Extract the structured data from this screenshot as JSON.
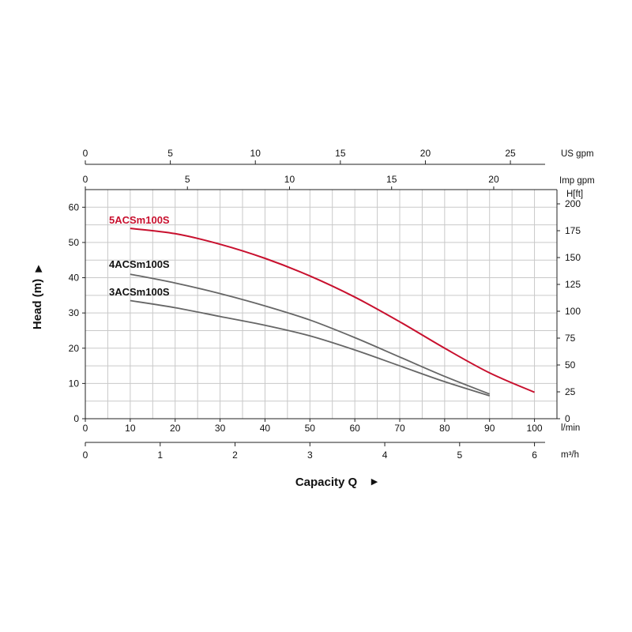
{
  "chart_data": {
    "type": "line",
    "title": "",
    "xlabel": "Capacity Q",
    "ylabel": "Head (m)",
    "x_unit": "l/min",
    "x_unit_m3h": "m³/h",
    "xlim": [
      0,
      105
    ],
    "ylim": [
      0,
      65
    ],
    "x_ticks": [
      0,
      10,
      20,
      30,
      40,
      50,
      60,
      70,
      80,
      90,
      100
    ],
    "y_ticks": [
      0,
      10,
      20,
      30,
      40,
      50,
      60
    ],
    "m3h_ticks": [
      "0",
      "1",
      "2",
      "3",
      "4",
      "5",
      "6"
    ],
    "us_gpm_label": "US gpm",
    "us_gpm_ticks": [
      "0",
      "5",
      "10",
      "15",
      "20",
      "25"
    ],
    "imp_gpm_label": "Imp gpm",
    "imp_gpm_ticks": [
      "0",
      "5",
      "10",
      "15",
      "20"
    ],
    "hft_label": "H[ft]",
    "hft_ticks": [
      "0",
      "25",
      "50",
      "75",
      "100",
      "125",
      "150",
      "175",
      "200"
    ],
    "grid": true,
    "series": [
      {
        "name": "5ACSm100S",
        "color": "#c8102e",
        "x": [
          10,
          20,
          30,
          40,
          50,
          60,
          70,
          80,
          90,
          100
        ],
        "y": [
          54,
          52.5,
          49.5,
          45.5,
          40.5,
          34.5,
          27.5,
          20,
          13,
          7.5
        ]
      },
      {
        "name": "4ACSm100S",
        "color": "#666666",
        "x": [
          10,
          20,
          30,
          40,
          50,
          60,
          70,
          80,
          90
        ],
        "y": [
          41,
          38.5,
          35.5,
          32,
          28,
          23,
          17.5,
          12,
          7
        ]
      },
      {
        "name": "3ACSm100S",
        "color": "#666666",
        "x": [
          10,
          20,
          30,
          40,
          50,
          60,
          70,
          80,
          90
        ],
        "y": [
          33.5,
          31.5,
          29,
          26.5,
          23.5,
          19.5,
          15,
          10.5,
          6.5
        ]
      }
    ]
  }
}
